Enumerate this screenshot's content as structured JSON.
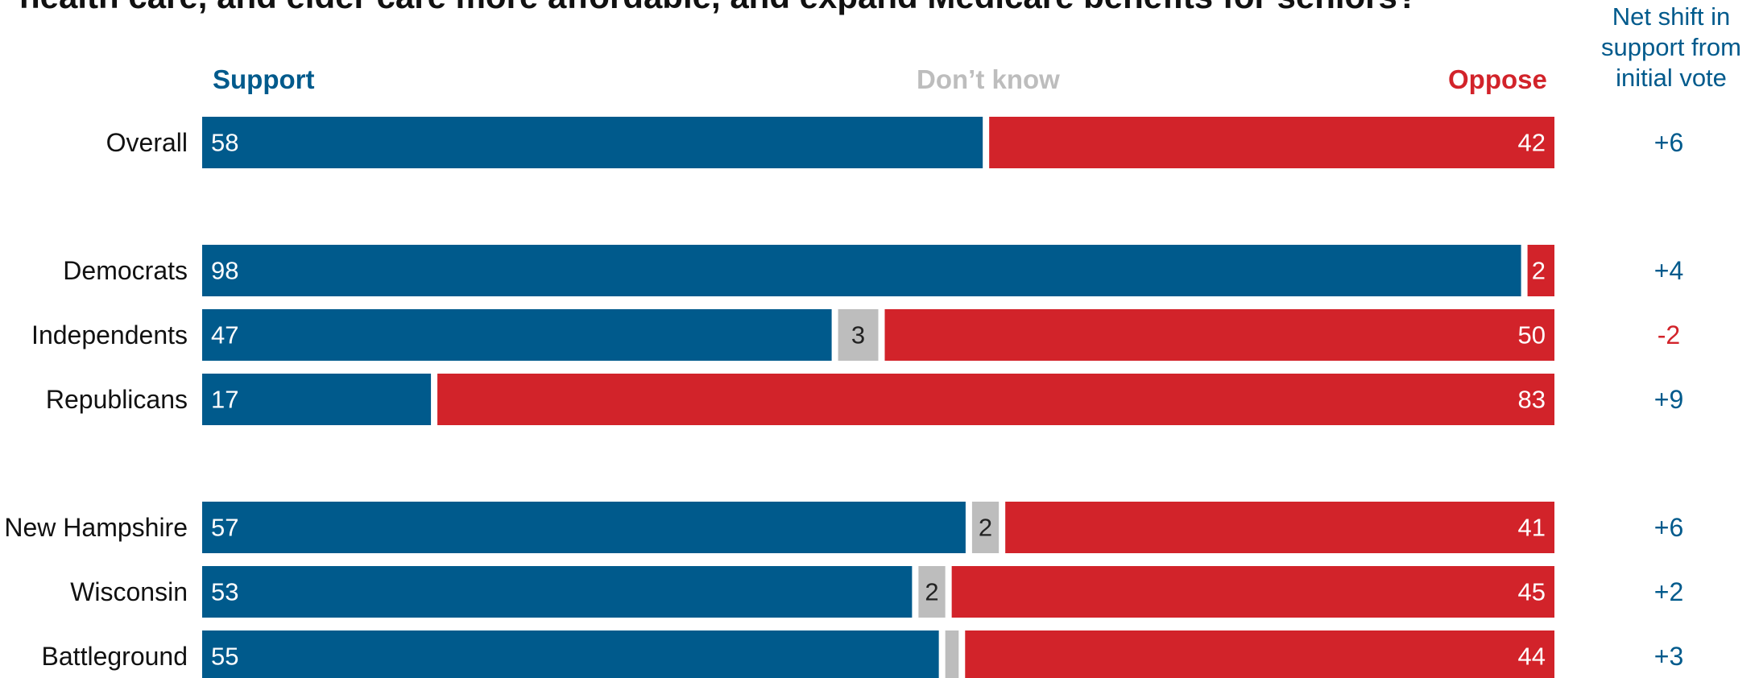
{
  "title": "health care, and elder care more affordable, and expand Medicare benefits for seniors?",
  "legend": {
    "support": "Support",
    "dont_know": "Don’t know",
    "oppose": "Oppose",
    "net_shift_header": [
      "Net shift in",
      "support from",
      "initial vote"
    ]
  },
  "colors": {
    "support": "#005a8c",
    "dont_know": "#bdbdbd",
    "oppose": "#d2232a",
    "net_positive": "#005a8c",
    "net_negative": "#d2232a"
  },
  "chart_data": {
    "type": "bar",
    "orientation": "horizontal",
    "stacked": true,
    "categories": [
      "Overall",
      "Democrats",
      "Independents",
      "Republicans",
      "New Hampshire",
      "Wisconsin",
      "Battleground"
    ],
    "series": [
      {
        "name": "Support",
        "values": [
          58,
          98,
          47,
          17,
          57,
          53,
          55
        ]
      },
      {
        "name": "Don’t know",
        "values": [
          0,
          0,
          3,
          0,
          2,
          2,
          1
        ]
      },
      {
        "name": "Oppose",
        "values": [
          42,
          2,
          50,
          83,
          41,
          45,
          44
        ]
      }
    ],
    "segment_labels": {
      "support": [
        "58",
        "98",
        "47",
        "17",
        "57",
        "53",
        "55"
      ],
      "dont_know": [
        "",
        "",
        "3",
        "",
        "2",
        "2",
        ""
      ],
      "oppose": [
        "42",
        "2",
        "50",
        "83",
        "41",
        "45",
        "44"
      ]
    },
    "net_shift": [
      "+6",
      "+4",
      "-2",
      "+9",
      "+6",
      "+2",
      "+3"
    ],
    "groups": [
      [
        "Overall"
      ],
      [
        "Democrats",
        "Independents",
        "Republicans"
      ],
      [
        "New Hampshire",
        "Wisconsin",
        "Battleground"
      ]
    ],
    "xlim": [
      0,
      100
    ],
    "grid": false,
    "legend": "top"
  }
}
